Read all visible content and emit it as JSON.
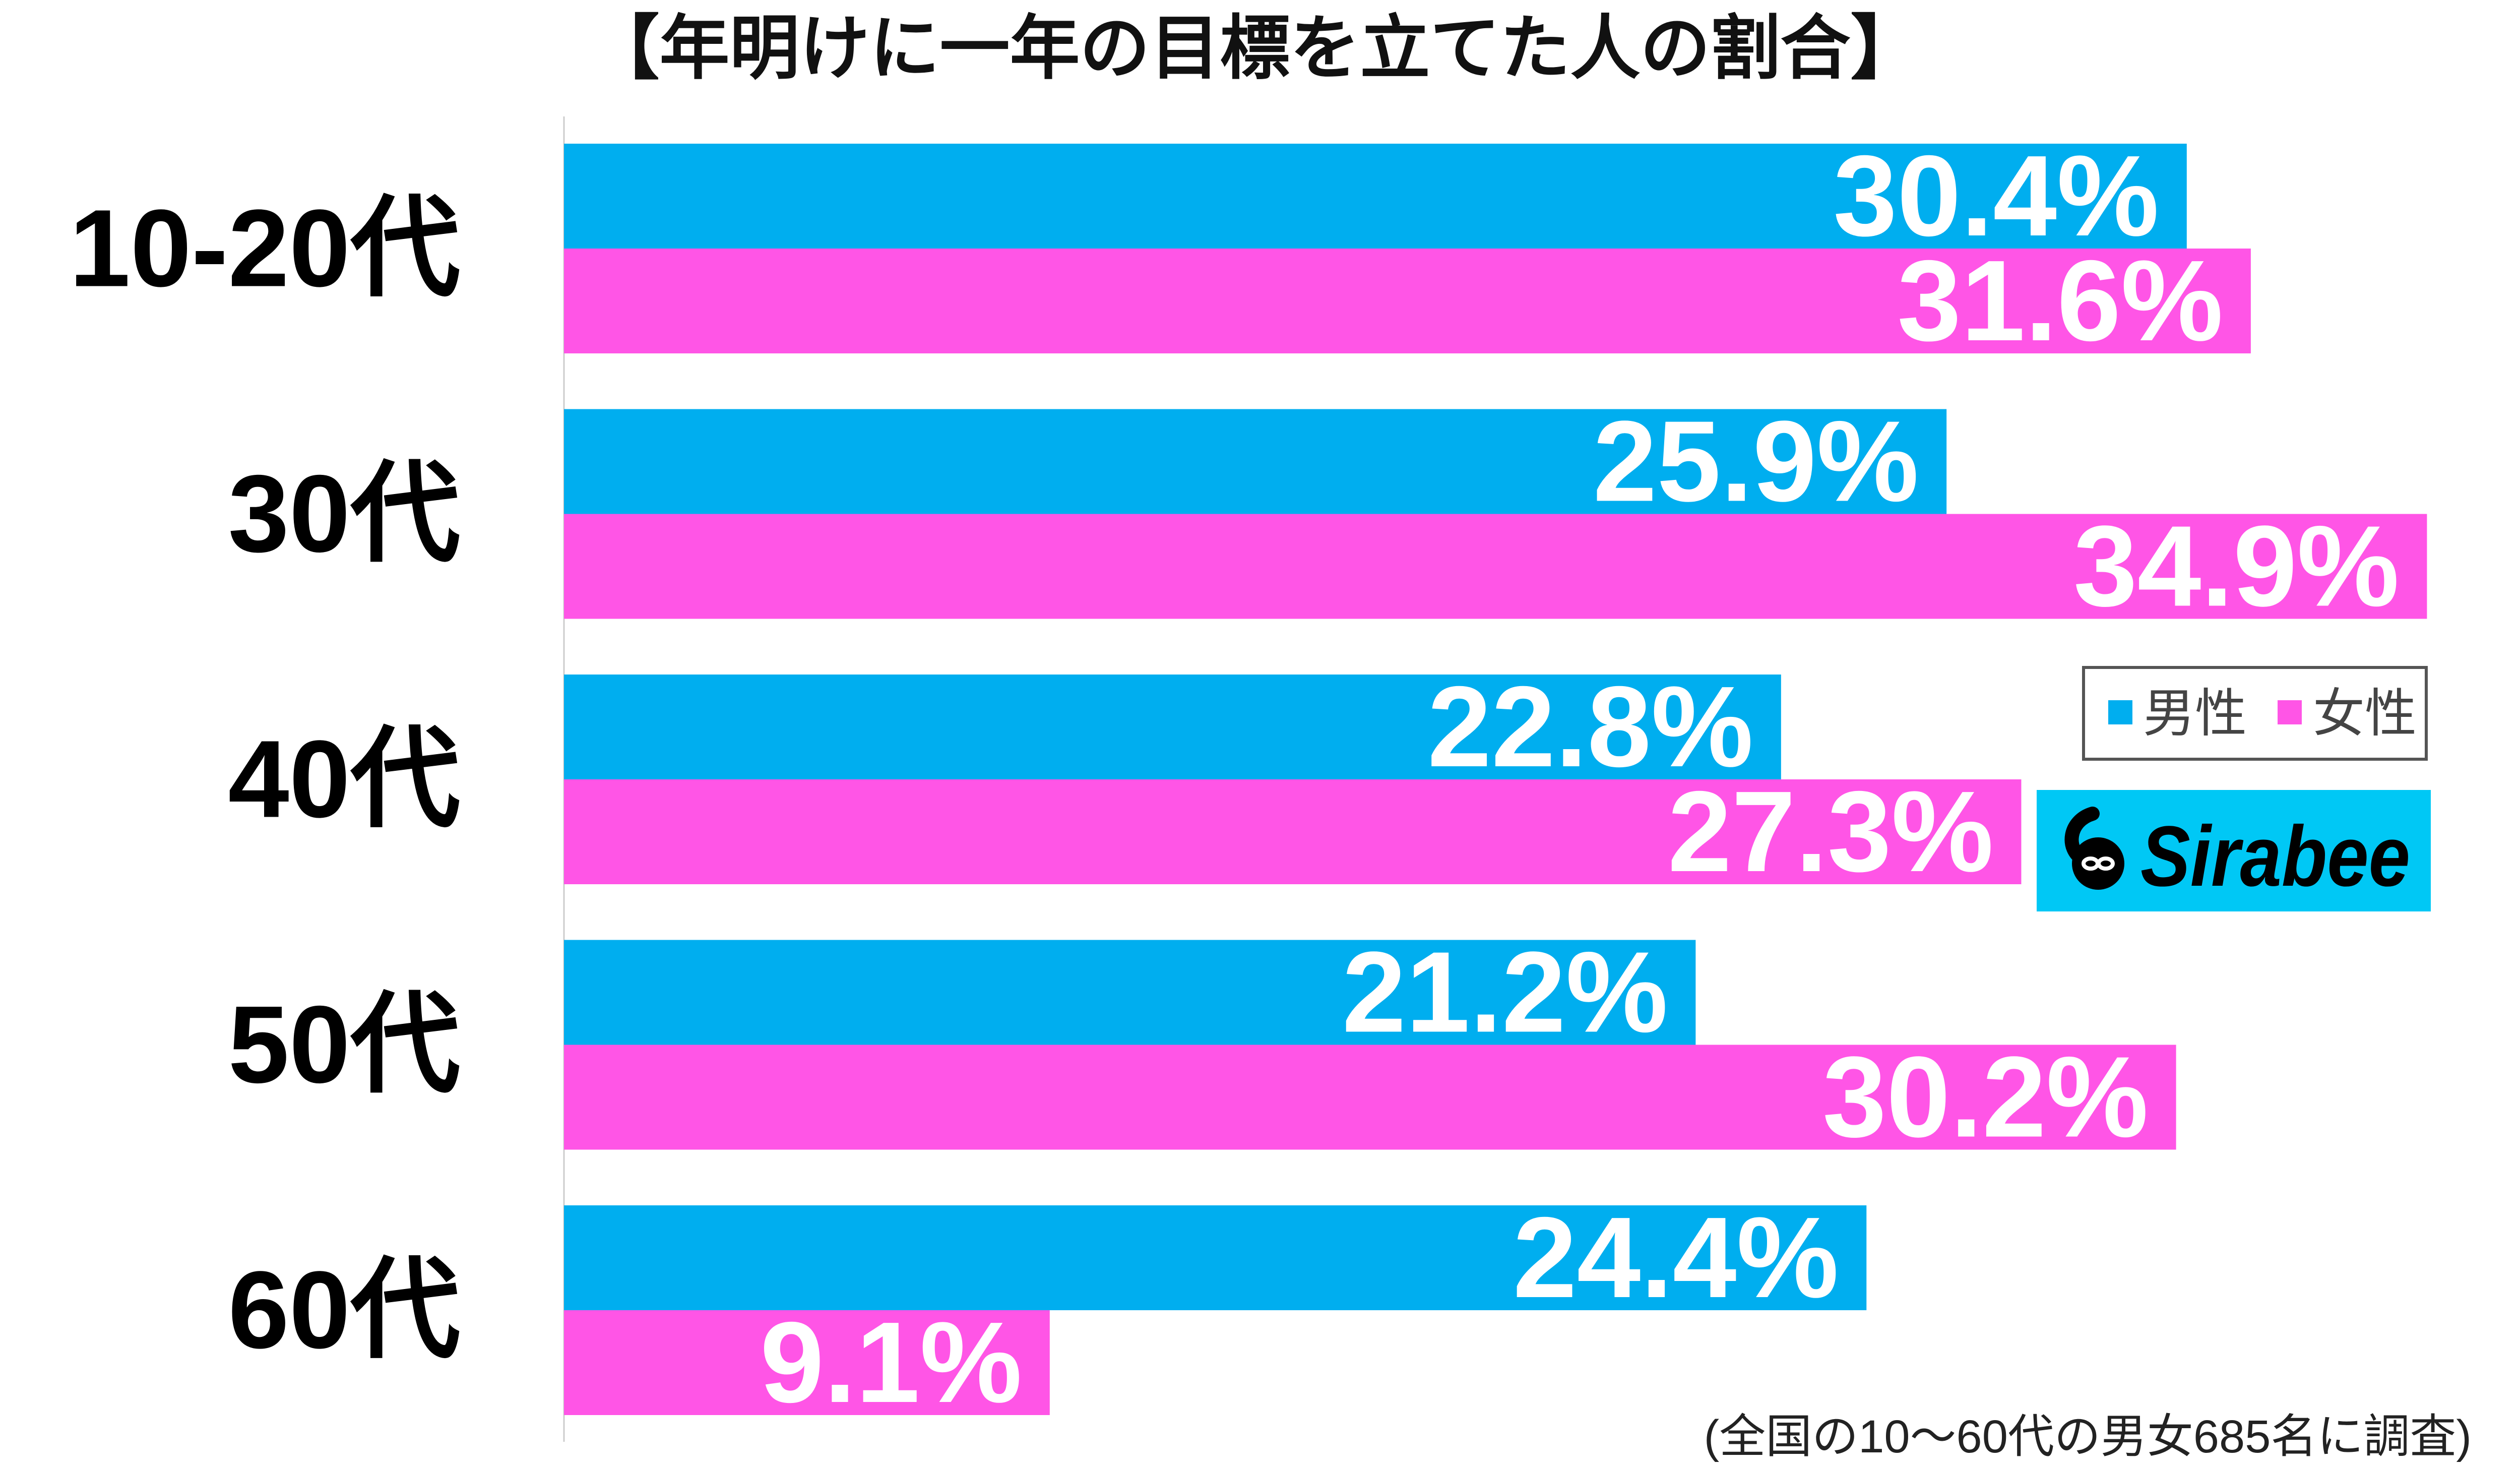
{
  "chart_data": {
    "type": "bar",
    "orientation": "horizontal",
    "title": "【年明けに一年の目標を立てた人の割合】",
    "categories": [
      "10-20代",
      "30代",
      "40代",
      "50代",
      "60代"
    ],
    "series": [
      {
        "name": "男性",
        "values": [
          30.4,
          25.9,
          22.8,
          21.2,
          24.4
        ],
        "color": "#00AEEF"
      },
      {
        "name": "女性",
        "values": [
          31.6,
          34.9,
          27.3,
          30.2,
          9.1
        ],
        "color": "#FF55E6"
      }
    ],
    "value_suffix": "%",
    "xlim": [
      0,
      35
    ],
    "grid": false,
    "legend": "right"
  },
  "note": "(全国の10〜60代の男女685名に調査)",
  "brand": {
    "name": "Sirabee",
    "color": "#00C8F5",
    "icon": "sirabee-logo-icon"
  }
}
